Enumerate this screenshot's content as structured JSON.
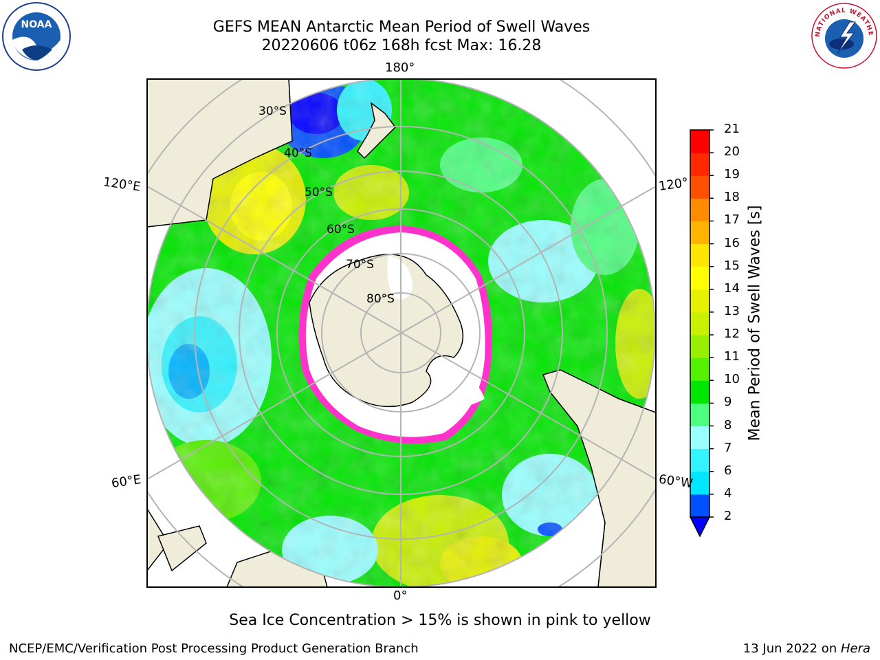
{
  "title": {
    "line1": "GEFS MEAN Antarctic Mean Period of Swell Waves",
    "line2": "20220606 t06z 168h fcst   Max: 16.28"
  },
  "map": {
    "longitude_labels": {
      "top": "180°",
      "bottom": "0°",
      "left_upper": "120°E",
      "left_lower": "60°E",
      "right_upper": "120°",
      "right_lower": "60°W"
    },
    "latitude_labels": [
      "30°S",
      "40°S",
      "50°S",
      "60°S",
      "70°S",
      "80°S"
    ],
    "colors": {
      "land": "#efedda",
      "sea_ice": "#ffffff",
      "ice_edge": "#ff33cc",
      "grid": "#b4b4b4"
    }
  },
  "colorbar": {
    "label": "Mean Period of Swell Waves [s]",
    "ticks": [
      "2",
      "4",
      "6",
      "7",
      "8",
      "9",
      "10",
      "11",
      "12",
      "13",
      "14",
      "15",
      "16",
      "17",
      "18",
      "19",
      "20",
      "21"
    ],
    "colors": [
      "#0050ff",
      "#00e6ff",
      "#33f3ff",
      "#99ffff",
      "#4dff80",
      "#00e600",
      "#55f000",
      "#99ef00",
      "#c8f000",
      "#e6f000",
      "#ffff00",
      "#ffe600",
      "#ffb400",
      "#ff8c00",
      "#ff5000",
      "#ff2800",
      "#ff0000"
    ],
    "extend_color": "#0000ff"
  },
  "footnote": "Sea Ice Concentration > 15% is shown in pink to yellow",
  "credits": {
    "left": "NCEP/EMC/Verification Post Processing Product Generation Branch",
    "date": "13 Jun 2022 on ",
    "system": "Hera"
  },
  "logos": {
    "noaa_text": "NOAA",
    "nws_text": "NATIONAL WEATHER SERVICE"
  }
}
